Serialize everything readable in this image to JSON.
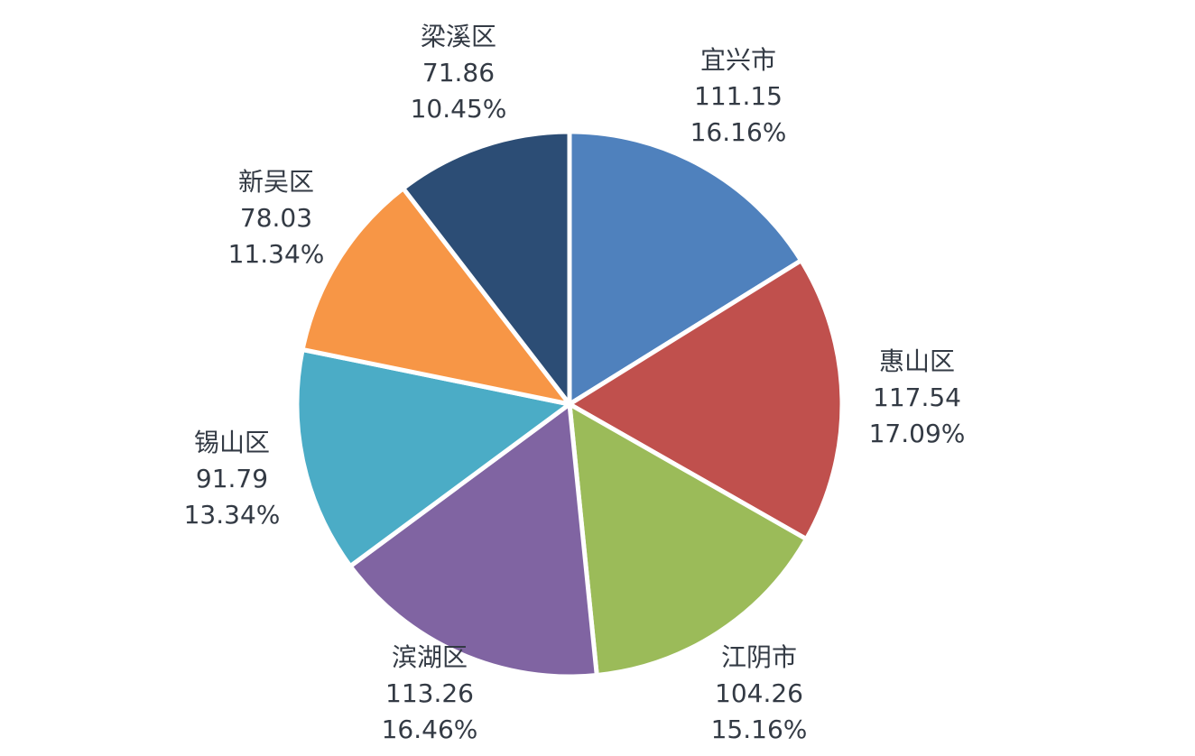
{
  "chart_data": {
    "type": "pie",
    "start_angle_deg": 0,
    "direction": "clockwise",
    "slices": [
      {
        "name": "宜兴市",
        "value": 111.15,
        "percent": "16.16%",
        "color": "#4f81bd"
      },
      {
        "name": "惠山区",
        "value": 117.54,
        "percent": "17.09%",
        "color": "#c0504d"
      },
      {
        "name": "江阴市",
        "value": 104.26,
        "percent": "15.16%",
        "color": "#9bbb59"
      },
      {
        "name": "滨湖区",
        "value": 113.26,
        "percent": "16.46%",
        "color": "#8064a2"
      },
      {
        "name": "锡山区",
        "value": 91.79,
        "percent": "13.34%",
        "color": "#4bacc6"
      },
      {
        "name": "新吴区",
        "value": 78.03,
        "percent": "11.34%",
        "color": "#f79646"
      },
      {
        "name": "梁溪区",
        "value": 71.86,
        "percent": "10.45%",
        "color": "#2c4d75"
      }
    ]
  }
}
